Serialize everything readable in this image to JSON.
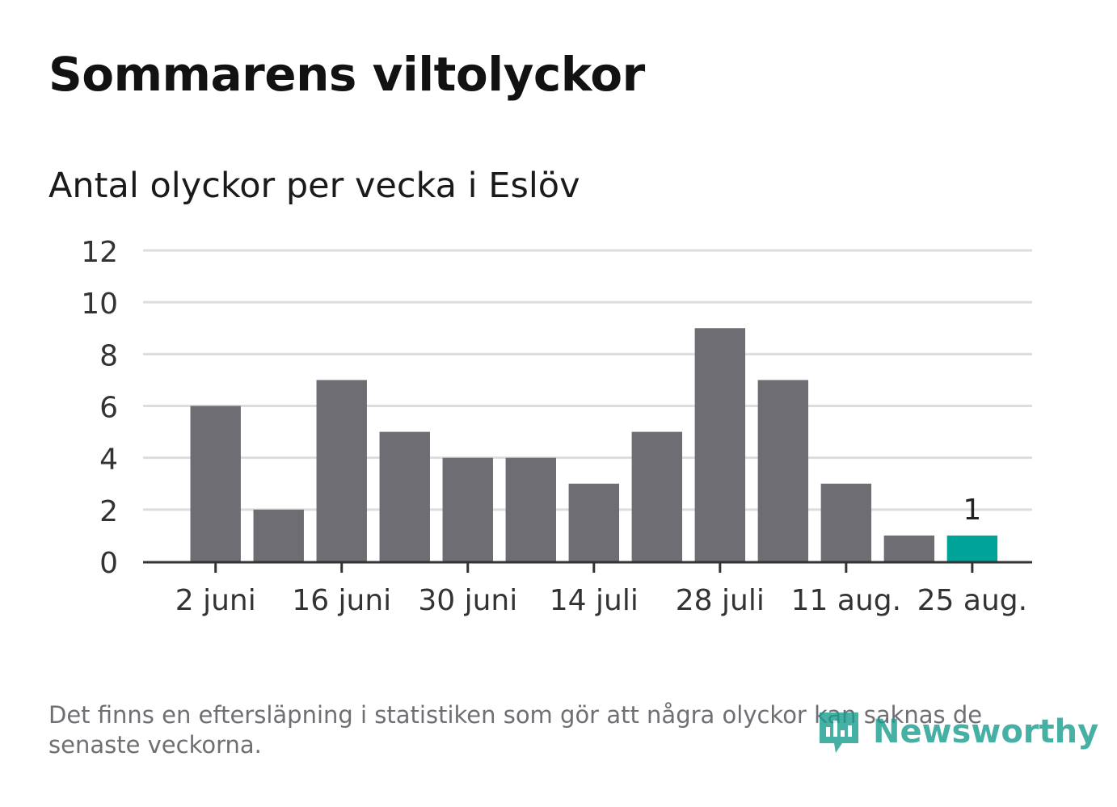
{
  "title": "Sommarens viltolyckor",
  "subtitle": "Antal olyckor per vecka i Eslöv",
  "note": "Det finns en eftersläpning i statistiken som gör att några olyckor kan saknas de senaste veckorna.",
  "logo": {
    "text": "Newsworthy",
    "icon": "newsworthy-logo-icon"
  },
  "colors": {
    "bar": "#6e6d73",
    "highlight": "#00a398",
    "grid": "#dddddd",
    "axis": "#333333",
    "logo": "#1a9d8f"
  },
  "chart_data": {
    "type": "bar",
    "values": [
      6,
      2,
      7,
      5,
      4,
      4,
      3,
      5,
      9,
      7,
      3,
      1,
      1
    ],
    "x_tick_labels": [
      "2 juni",
      "16 juni",
      "30 juni",
      "14 juli",
      "28 juli",
      "11 aug.",
      "25 aug."
    ],
    "x_tick_positions": [
      0,
      2,
      4,
      6,
      8,
      10,
      12
    ],
    "y_ticks": [
      0,
      2,
      4,
      6,
      8,
      10,
      12
    ],
    "ylim": [
      0,
      12
    ],
    "highlight_index": 12,
    "data_labels": [
      {
        "index": 12,
        "text": "1"
      }
    ],
    "grid": true,
    "xlabel": "",
    "ylabel": ""
  }
}
